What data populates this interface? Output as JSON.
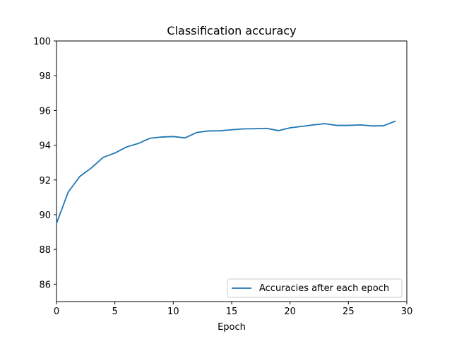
{
  "chart_data": {
    "type": "line",
    "title": "Classification accuracy",
    "xlabel": "Epoch",
    "ylabel": "",
    "xlim": [
      0,
      30
    ],
    "ylim": [
      85,
      100
    ],
    "xticks": [
      0,
      5,
      10,
      15,
      20,
      25,
      30
    ],
    "yticks": [
      86,
      88,
      90,
      92,
      94,
      96,
      98,
      100
    ],
    "grid": false,
    "legend_position": "lower-right",
    "series": [
      {
        "name": "Accuracies after each epoch",
        "color": "#1f77b4",
        "x": [
          0,
          1,
          2,
          3,
          4,
          5,
          6,
          7,
          8,
          9,
          10,
          11,
          12,
          13,
          14,
          15,
          16,
          17,
          18,
          19,
          20,
          21,
          22,
          23,
          24,
          25,
          26,
          27,
          28,
          29
        ],
        "values": [
          89.5,
          91.3,
          92.2,
          92.7,
          93.3,
          93.55,
          93.9,
          94.1,
          94.4,
          94.47,
          94.5,
          94.42,
          94.73,
          94.82,
          94.83,
          94.89,
          94.94,
          94.95,
          94.97,
          94.84,
          95.0,
          95.08,
          95.17,
          95.24,
          95.14,
          95.14,
          95.17,
          95.11,
          95.12,
          95.38
        ]
      }
    ]
  }
}
